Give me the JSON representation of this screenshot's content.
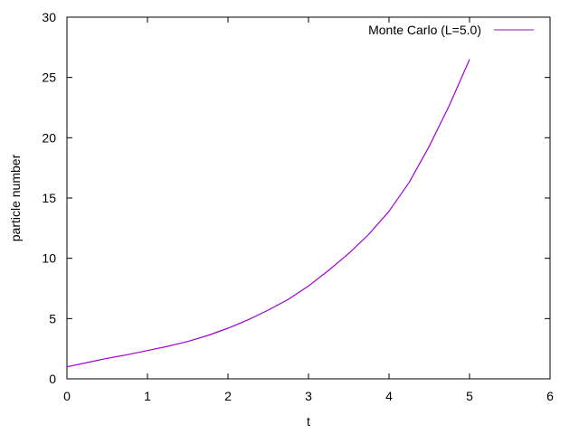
{
  "chart_data": {
    "type": "line",
    "title": "",
    "xlabel": "t",
    "ylabel": "particle number",
    "xlim": [
      0,
      6
    ],
    "ylim": [
      0,
      30
    ],
    "xticks": [
      0,
      1,
      2,
      3,
      4,
      5,
      6
    ],
    "yticks": [
      0,
      5,
      10,
      15,
      20,
      25,
      30
    ],
    "grid": false,
    "legend_position": "top-right",
    "series": [
      {
        "name": "Monte Carlo (L=5.0)",
        "color": "#a000d6",
        "x": [
          0,
          0.25,
          0.5,
          0.75,
          1.0,
          1.25,
          1.5,
          1.75,
          2.0,
          2.25,
          2.5,
          2.75,
          3.0,
          3.25,
          3.5,
          3.75,
          4.0,
          4.25,
          4.5,
          4.75,
          5.0
        ],
        "y": [
          1.0,
          1.35,
          1.7,
          2.0,
          2.35,
          2.7,
          3.1,
          3.6,
          4.2,
          4.9,
          5.7,
          6.6,
          7.7,
          9.0,
          10.4,
          12.0,
          13.9,
          16.3,
          19.3,
          22.7,
          26.5
        ]
      }
    ]
  }
}
